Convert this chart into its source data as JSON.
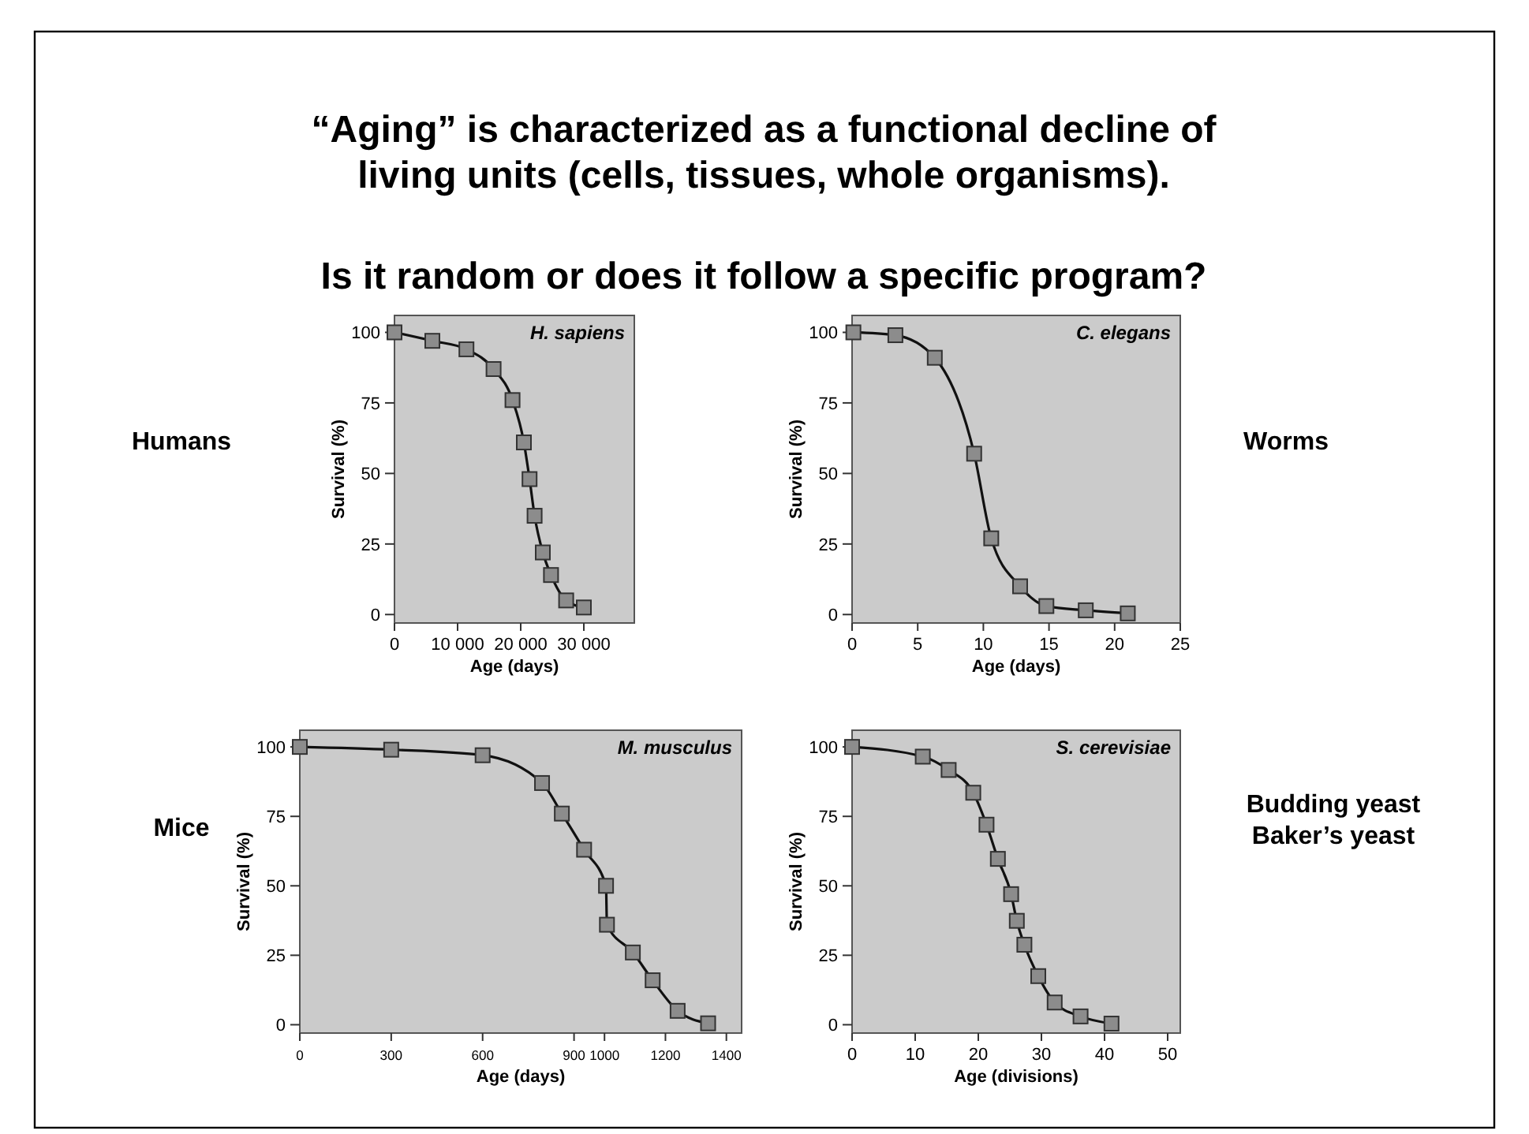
{
  "chart_data": [
    {
      "type": "line",
      "title": "“Aging” is characterized as a functional decline of living units (cells, tissues, whole organisms).",
      "subtitle": "Is it random or does it follow a specific program?",
      "xlabel": "Age (days)",
      "ylabel": "Survival (%)",
      "annotations": [
        "H. sapiens",
        "Humans"
      ],
      "x": [
        0,
        6000,
        11400,
        15700,
        18700,
        20500,
        21400,
        22200,
        23500,
        24800,
        27200,
        30000
      ],
      "series": [
        {
          "color": "#8c8c8c",
          "values": [
            100,
            97,
            94,
            87,
            76,
            61,
            48,
            35,
            22,
            14,
            5,
            2.5
          ]
        }
      ],
      "xlim": [
        0,
        38000
      ],
      "xticks": [
        {
          "value": 0,
          "label": "0"
        },
        {
          "value": 10000,
          "label": "10 000"
        },
        {
          "value": 20000,
          "label": "20 000"
        },
        {
          "value": 30000,
          "label": "30 000"
        }
      ],
      "ylim": [
        -3,
        106
      ],
      "yticks": [
        0,
        25,
        50,
        75,
        100
      ],
      "grid": false,
      "marker": "square",
      "line_style": "solid"
    },
    {
      "type": "line",
      "xlabel": "Age (days)",
      "ylabel": "Survival (%)",
      "annotations": [
        "C. elegans",
        "Worms"
      ],
      "x": [
        0.1,
        3.3,
        6.3,
        9.3,
        10.6,
        12.8,
        14.8,
        17.8,
        21
      ],
      "series": [
        {
          "color": "#8c8c8c",
          "values": [
            100,
            99,
            91,
            57,
            27,
            10,
            3,
            1.5,
            0.4
          ]
        }
      ],
      "xlim": [
        0,
        25
      ],
      "xticks": [
        0,
        5,
        10,
        15,
        20,
        25
      ],
      "ylim": [
        -3,
        106
      ],
      "yticks": [
        0,
        25,
        50,
        75,
        100
      ],
      "grid": false,
      "marker": "square",
      "line_style": "solid"
    },
    {
      "type": "line",
      "xlabel": "Age (days)",
      "ylabel": "Survival (%)",
      "annotations": [
        "M. musculus",
        "Mice"
      ],
      "x": [
        0,
        300,
        600,
        795,
        860,
        933,
        1005,
        1008,
        1093,
        1158,
        1240,
        1340
      ],
      "series": [
        {
          "color": "#8c8c8c",
          "values": [
            100,
            99,
            97,
            87,
            76,
            63,
            50,
            36,
            26,
            16,
            5,
            0.5
          ]
        }
      ],
      "xlim": [
        0,
        1450
      ],
      "xticks": [
        0,
        300,
        600,
        900,
        1000,
        1200,
        1400
      ],
      "ylim": [
        -3,
        106
      ],
      "yticks": [
        0,
        25,
        50,
        75,
        100
      ],
      "grid": false,
      "marker": "square",
      "line_style": "solid"
    },
    {
      "type": "line",
      "xlabel": "Age (divisions)",
      "ylabel": "Survival (%)",
      "annotations": [
        "S. cerevisiae",
        "Budding yeast\nBaker’s yeast"
      ],
      "x": [
        0,
        11.2,
        15.3,
        19.2,
        21.3,
        23.1,
        25.2,
        26.1,
        27.3,
        29.5,
        32.1,
        36.2,
        41.1
      ],
      "series": [
        {
          "color": "#8c8c8c",
          "values": [
            100,
            96.5,
            91.7,
            83.5,
            72,
            59.7,
            47,
            37.4,
            28.8,
            17.5,
            8,
            3,
            0.4
          ]
        }
      ],
      "xlim": [
        0,
        52
      ],
      "xticks": [
        0,
        10,
        20,
        30,
        40,
        50
      ],
      "ylim": [
        -3,
        106
      ],
      "yticks": [
        0,
        25,
        50,
        75,
        100
      ],
      "grid": false,
      "marker": "square",
      "line_style": "solid"
    }
  ]
}
